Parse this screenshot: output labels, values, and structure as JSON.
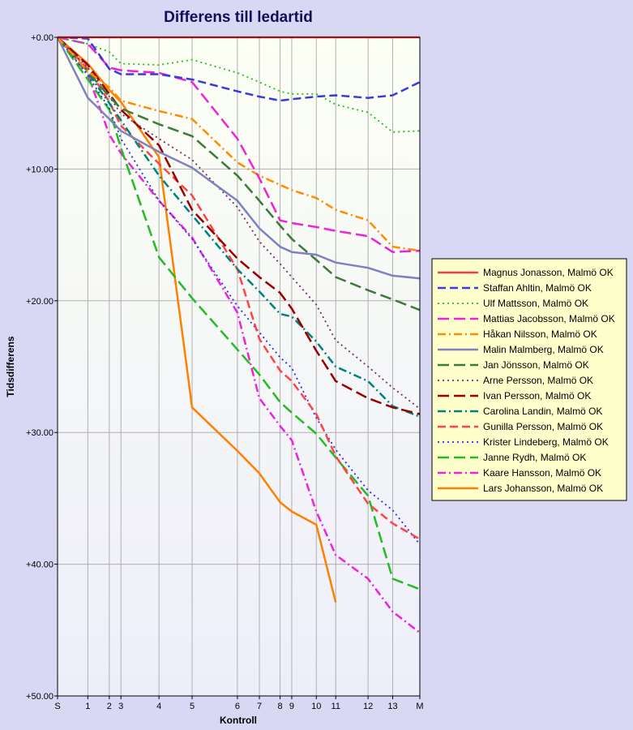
{
  "chart_data": {
    "type": "line",
    "title": "Differens till ledartid",
    "xlabel": "Kontroll",
    "ylabel": "Tidsdifferens",
    "categories": [
      "S",
      "1",
      "2",
      "3",
      "4",
      "5",
      "6",
      "7",
      "8",
      "9",
      "10",
      "11",
      "12",
      "13",
      "M"
    ],
    "x_positions": [
      0,
      1.17,
      2.0,
      2.45,
      3.92,
      5.2,
      6.95,
      7.8,
      8.6,
      9.05,
      10.0,
      10.75,
      12.0,
      12.95,
      14.0
    ],
    "y_ticks": [
      "+0.00",
      "+10.00",
      "+20.00",
      "+30.00",
      "+40.00",
      "+50.00"
    ],
    "ylim": [
      0,
      50
    ],
    "y_inverted": true,
    "grid": true,
    "legend_position": "right",
    "series": [
      {
        "name": "Magnus Jonasson, Malmö OK",
        "color": "#ff3b3b",
        "dash": "solid",
        "values": [
          0,
          0,
          0,
          0,
          0,
          0,
          0,
          0,
          0,
          0,
          0,
          0,
          0,
          0,
          0
        ]
      },
      {
        "name": "Staffan Ahltin, Malmö OK",
        "color": "#3a3adc",
        "dash": "dash",
        "values": [
          0,
          0.1,
          2.4,
          2.8,
          2.8,
          3.2,
          4.1,
          4.5,
          4.8,
          4.7,
          4.5,
          4.4,
          4.6,
          4.4,
          3.4
        ]
      },
      {
        "name": "Ulf Mattsson, Malmö OK",
        "color": "#22bb22",
        "dash": "dot",
        "values": [
          0,
          0.5,
          1.1,
          2.0,
          2.1,
          1.7,
          2.7,
          3.4,
          4.1,
          4.3,
          4.3,
          5.1,
          5.7,
          7.2,
          7.1
        ]
      },
      {
        "name": "Mattias Jacobsson, Malmö OK",
        "color": "#ee22dd",
        "dash": "longdash",
        "values": [
          0,
          0.5,
          2.3,
          2.5,
          2.7,
          3.4,
          7.7,
          10.7,
          13.9,
          14.1,
          14.4,
          14.7,
          15.1,
          16.3,
          16.2
        ]
      },
      {
        "name": "Håkan Nilsson, Malmö OK",
        "color": "#ff8c00",
        "dash": "dashdot",
        "values": [
          0,
          2.6,
          3.8,
          4.8,
          5.6,
          6.2,
          9.5,
          10.5,
          11.2,
          11.6,
          12.2,
          13.1,
          13.9,
          15.9,
          16.2
        ]
      },
      {
        "name": "Malin Malmberg, Malmö OK",
        "color": "#8080c0",
        "dash": "solid",
        "values": [
          0,
          4.6,
          6.2,
          7.1,
          8.7,
          9.9,
          12.4,
          14.5,
          15.9,
          16.3,
          16.5,
          17.1,
          17.5,
          18.1,
          18.3
        ]
      },
      {
        "name": "Jan Jönsson, Malmö OK",
        "color": "#3c7a3c",
        "dash": "longdash",
        "values": [
          0,
          2.6,
          4.5,
          5.4,
          6.6,
          7.5,
          10.5,
          12.4,
          14.3,
          15.3,
          16.9,
          18.2,
          19.2,
          19.9,
          20.7
        ]
      },
      {
        "name": "Arne Persson, Malmö OK",
        "color": "#7a2a6a",
        "dash": "dot",
        "values": [
          0,
          2.3,
          4.5,
          5.8,
          7.7,
          9.3,
          12.9,
          15.5,
          17.2,
          18.2,
          20.3,
          23.0,
          25.0,
          26.6,
          28.2
        ]
      },
      {
        "name": "Ivan Persson, Malmö OK",
        "color": "#990000",
        "dash": "longdash",
        "values": [
          0,
          2.1,
          4.3,
          5.5,
          8.2,
          13.1,
          16.8,
          18.2,
          19.4,
          20.6,
          23.8,
          26.1,
          27.4,
          28.1,
          28.6
        ]
      },
      {
        "name": "Carolina Landin, Malmö OK",
        "color": "#008080",
        "dash": "dashdot",
        "values": [
          0,
          2.7,
          5.0,
          6.3,
          10.5,
          13.5,
          17.6,
          19.3,
          21.0,
          21.2,
          23.1,
          25.0,
          26.1,
          28.0,
          28.8
        ]
      },
      {
        "name": "Gunilla Persson, Malmö OK",
        "color": "#ff4444",
        "dash": "dash",
        "values": [
          0,
          2.4,
          4.9,
          6.7,
          9.6,
          12.0,
          17.6,
          22.9,
          25.3,
          26.1,
          28.6,
          31.8,
          35.4,
          36.9,
          38.1
        ]
      },
      {
        "name": "Krister Lindeberg, Malmö OK",
        "color": "#2a2aee",
        "dash": "dot",
        "values": [
          0,
          2.9,
          5.4,
          7.7,
          12.4,
          15.3,
          20.4,
          22.4,
          24.3,
          25.1,
          28.9,
          31.3,
          34.4,
          35.9,
          38.5
        ]
      },
      {
        "name": "Janne Rydh, Malmö OK",
        "color": "#22bb22",
        "dash": "longdash",
        "values": [
          0,
          3.2,
          5.5,
          8.4,
          16.7,
          19.8,
          23.7,
          25.6,
          27.7,
          28.5,
          30.1,
          31.9,
          34.8,
          41.1,
          41.9
        ]
      },
      {
        "name": "Kaare Hansson, Malmö OK",
        "color": "#ee22dd",
        "dash": "dashdot",
        "values": [
          0,
          2.8,
          7.4,
          8.8,
          12.4,
          15.2,
          20.9,
          27.4,
          29.5,
          30.6,
          36.0,
          39.3,
          41.1,
          43.6,
          45.2
        ]
      },
      {
        "name": "Lars Johansson, Malmö OK",
        "color": "#ff8000",
        "dash": "solid",
        "values": [
          0,
          2.0,
          4.0,
          4.9,
          9.1,
          28.1,
          31.4,
          33.1,
          35.3,
          36.0,
          37.0,
          42.9,
          null,
          null,
          null
        ]
      }
    ]
  }
}
